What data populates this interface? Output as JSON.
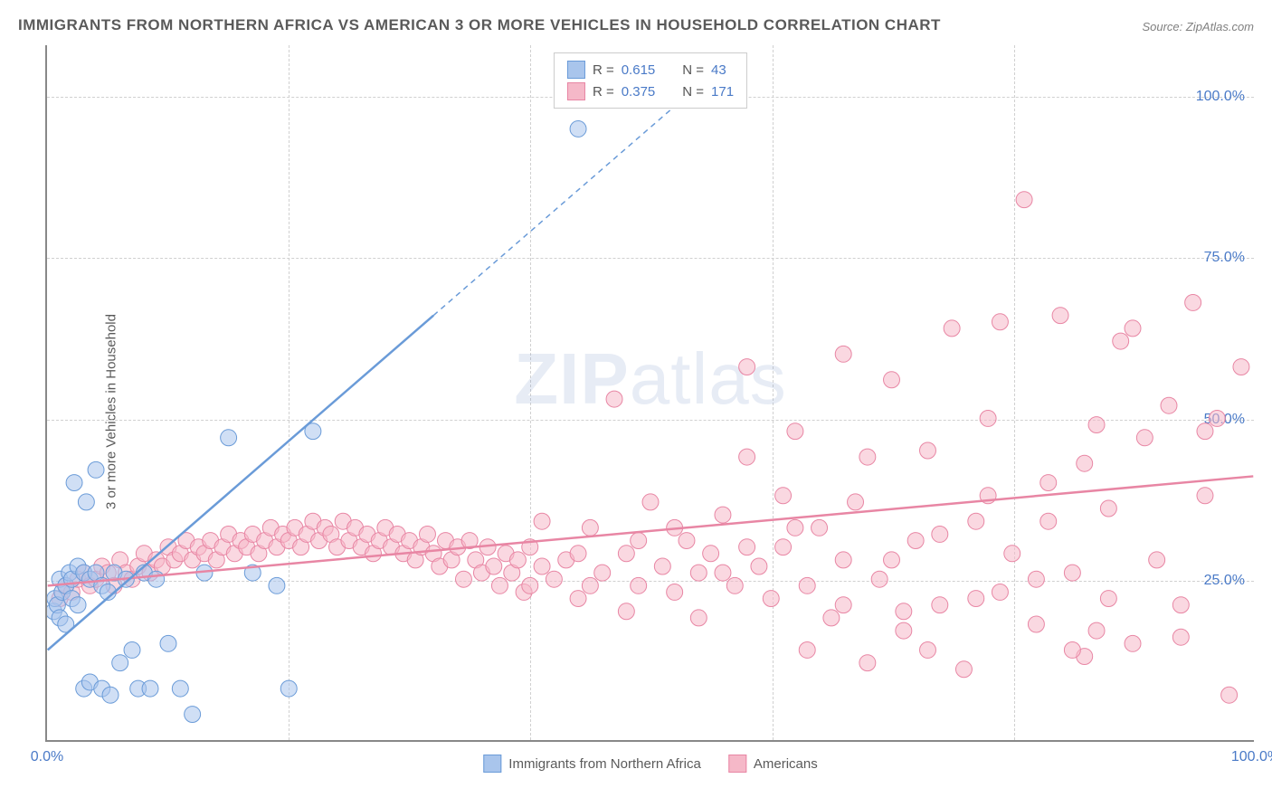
{
  "title": "IMMIGRANTS FROM NORTHERN AFRICA VS AMERICAN 3 OR MORE VEHICLES IN HOUSEHOLD CORRELATION CHART",
  "source": "Source: ZipAtlas.com",
  "ylabel": "3 or more Vehicles in Household",
  "watermark_bold": "ZIP",
  "watermark_rest": "atlas",
  "chart": {
    "type": "scatter",
    "background_color": "#ffffff",
    "grid_color": "#d0d0d0",
    "axis_color": "#888888",
    "xlim": [
      0,
      100
    ],
    "ylim": [
      0,
      108
    ],
    "xticks": [
      {
        "v": 0,
        "l": "0.0%"
      },
      {
        "v": 100,
        "l": "100.0%"
      }
    ],
    "yticks": [
      {
        "v": 25,
        "l": "25.0%"
      },
      {
        "v": 50,
        "l": "50.0%"
      },
      {
        "v": 75,
        "l": "75.0%"
      },
      {
        "v": 100,
        "l": "100.0%"
      }
    ],
    "x_gridlines": [
      20,
      40,
      60,
      80
    ],
    "marker_radius": 9,
    "marker_stroke_width": 1,
    "line_width": 2.5,
    "series": {
      "blue": {
        "label": "Immigrants from Northern Africa",
        "fill": "#a9c5ec",
        "stroke": "#6a9bd8",
        "fill_opacity": 0.55,
        "R": "0.615",
        "N": "43",
        "trend": {
          "x1": 0,
          "y1": 14,
          "x2": 32,
          "y2": 66,
          "dash_x2": 56,
          "dash_y2": 105
        },
        "points": [
          [
            0.5,
            20
          ],
          [
            0.6,
            22
          ],
          [
            0.8,
            21
          ],
          [
            1,
            19
          ],
          [
            1,
            25
          ],
          [
            1.2,
            23
          ],
          [
            1.5,
            24
          ],
          [
            1.5,
            18
          ],
          [
            1.8,
            26
          ],
          [
            2,
            25
          ],
          [
            2,
            22
          ],
          [
            2.2,
            40
          ],
          [
            2.5,
            27
          ],
          [
            2.5,
            21
          ],
          [
            3,
            26
          ],
          [
            3,
            8
          ],
          [
            3.2,
            37
          ],
          [
            3.5,
            25
          ],
          [
            3.5,
            9
          ],
          [
            4,
            26
          ],
          [
            4,
            42
          ],
          [
            4.5,
            24
          ],
          [
            4.5,
            8
          ],
          [
            5,
            23
          ],
          [
            5.2,
            7
          ],
          [
            5.5,
            26
          ],
          [
            6,
            12
          ],
          [
            6.5,
            25
          ],
          [
            7,
            14
          ],
          [
            7.5,
            8
          ],
          [
            8,
            26
          ],
          [
            8.5,
            8
          ],
          [
            9,
            25
          ],
          [
            10,
            15
          ],
          [
            11,
            8
          ],
          [
            12,
            4
          ],
          [
            13,
            26
          ],
          [
            15,
            47
          ],
          [
            17,
            26
          ],
          [
            19,
            24
          ],
          [
            20,
            8
          ],
          [
            22,
            48
          ],
          [
            44,
            95
          ]
        ]
      },
      "pink": {
        "label": "Americans",
        "fill": "#f5b8c8",
        "stroke": "#e886a4",
        "fill_opacity": 0.55,
        "R": "0.375",
        "N": "171",
        "trend": {
          "x1": 0,
          "y1": 24,
          "x2": 100,
          "y2": 41
        },
        "points": [
          [
            1,
            22
          ],
          [
            1.5,
            24
          ],
          [
            2,
            23
          ],
          [
            2.5,
            25
          ],
          [
            3,
            26
          ],
          [
            3.5,
            24
          ],
          [
            4,
            25
          ],
          [
            4.5,
            27
          ],
          [
            5,
            26
          ],
          [
            5.5,
            24
          ],
          [
            6,
            28
          ],
          [
            6.5,
            26
          ],
          [
            7,
            25
          ],
          [
            7.5,
            27
          ],
          [
            8,
            29
          ],
          [
            8.5,
            26
          ],
          [
            9,
            28
          ],
          [
            9.5,
            27
          ],
          [
            10,
            30
          ],
          [
            10.5,
            28
          ],
          [
            11,
            29
          ],
          [
            11.5,
            31
          ],
          [
            12,
            28
          ],
          [
            12.5,
            30
          ],
          [
            13,
            29
          ],
          [
            13.5,
            31
          ],
          [
            14,
            28
          ],
          [
            14.5,
            30
          ],
          [
            15,
            32
          ],
          [
            15.5,
            29
          ],
          [
            16,
            31
          ],
          [
            16.5,
            30
          ],
          [
            17,
            32
          ],
          [
            17.5,
            29
          ],
          [
            18,
            31
          ],
          [
            18.5,
            33
          ],
          [
            19,
            30
          ],
          [
            19.5,
            32
          ],
          [
            20,
            31
          ],
          [
            20.5,
            33
          ],
          [
            21,
            30
          ],
          [
            21.5,
            32
          ],
          [
            22,
            34
          ],
          [
            22.5,
            31
          ],
          [
            23,
            33
          ],
          [
            23.5,
            32
          ],
          [
            24,
            30
          ],
          [
            24.5,
            34
          ],
          [
            25,
            31
          ],
          [
            25.5,
            33
          ],
          [
            26,
            30
          ],
          [
            26.5,
            32
          ],
          [
            27,
            29
          ],
          [
            27.5,
            31
          ],
          [
            28,
            33
          ],
          [
            28.5,
            30
          ],
          [
            29,
            32
          ],
          [
            29.5,
            29
          ],
          [
            30,
            31
          ],
          [
            30.5,
            28
          ],
          [
            31,
            30
          ],
          [
            31.5,
            32
          ],
          [
            32,
            29
          ],
          [
            32.5,
            27
          ],
          [
            33,
            31
          ],
          [
            33.5,
            28
          ],
          [
            34,
            30
          ],
          [
            34.5,
            25
          ],
          [
            35,
            31
          ],
          [
            35.5,
            28
          ],
          [
            36,
            26
          ],
          [
            36.5,
            30
          ],
          [
            37,
            27
          ],
          [
            37.5,
            24
          ],
          [
            38,
            29
          ],
          [
            38.5,
            26
          ],
          [
            39,
            28
          ],
          [
            39.5,
            23
          ],
          [
            40,
            30
          ],
          [
            41,
            27
          ],
          [
            42,
            25
          ],
          [
            43,
            28
          ],
          [
            44,
            22
          ],
          [
            45,
            33
          ],
          [
            46,
            26
          ],
          [
            47,
            53
          ],
          [
            48,
            29
          ],
          [
            49,
            24
          ],
          [
            50,
            37
          ],
          [
            51,
            27
          ],
          [
            52,
            23
          ],
          [
            53,
            31
          ],
          [
            54,
            26
          ],
          [
            55,
            29
          ],
          [
            56,
            35
          ],
          [
            57,
            24
          ],
          [
            58,
            58
          ],
          [
            59,
            27
          ],
          [
            60,
            22
          ],
          [
            61,
            30
          ],
          [
            62,
            48
          ],
          [
            63,
            14
          ],
          [
            64,
            33
          ],
          [
            65,
            19
          ],
          [
            66,
            28
          ],
          [
            67,
            37
          ],
          [
            68,
            12
          ],
          [
            69,
            25
          ],
          [
            70,
            56
          ],
          [
            71,
            20
          ],
          [
            72,
            31
          ],
          [
            73,
            45
          ],
          [
            74,
            21
          ],
          [
            75,
            64
          ],
          [
            76,
            11
          ],
          [
            77,
            34
          ],
          [
            78,
            50
          ],
          [
            79,
            23
          ],
          [
            80,
            29
          ],
          [
            81,
            84
          ],
          [
            82,
            18
          ],
          [
            83,
            40
          ],
          [
            84,
            66
          ],
          [
            85,
            26
          ],
          [
            86,
            13
          ],
          [
            87,
            49
          ],
          [
            88,
            36
          ],
          [
            89,
            62
          ],
          [
            90,
            15
          ],
          [
            91,
            47
          ],
          [
            92,
            28
          ],
          [
            93,
            52
          ],
          [
            94,
            21
          ],
          [
            95,
            68
          ],
          [
            94,
            16
          ],
          [
            96,
            38
          ],
          [
            97,
            50
          ],
          [
            98,
            7
          ],
          [
            99,
            58
          ],
          [
            96,
            48
          ],
          [
            85,
            14
          ],
          [
            88,
            22
          ],
          [
            79,
            65
          ],
          [
            73,
            14
          ],
          [
            68,
            44
          ],
          [
            63,
            24
          ],
          [
            58,
            30
          ],
          [
            54,
            19
          ],
          [
            49,
            31
          ],
          [
            45,
            24
          ],
          [
            41,
            34
          ],
          [
            83,
            34
          ],
          [
            77,
            22
          ],
          [
            71,
            17
          ],
          [
            66,
            60
          ],
          [
            61,
            38
          ],
          [
            56,
            26
          ],
          [
            52,
            33
          ],
          [
            48,
            20
          ],
          [
            44,
            29
          ],
          [
            40,
            24
          ],
          [
            90,
            64
          ],
          [
            86,
            43
          ],
          [
            82,
            25
          ],
          [
            78,
            38
          ],
          [
            74,
            32
          ],
          [
            70,
            28
          ],
          [
            66,
            21
          ],
          [
            62,
            33
          ],
          [
            58,
            44
          ],
          [
            87,
            17
          ]
        ]
      }
    }
  },
  "legend_top": {
    "r_label": "R  =",
    "n_label": "N  ="
  }
}
